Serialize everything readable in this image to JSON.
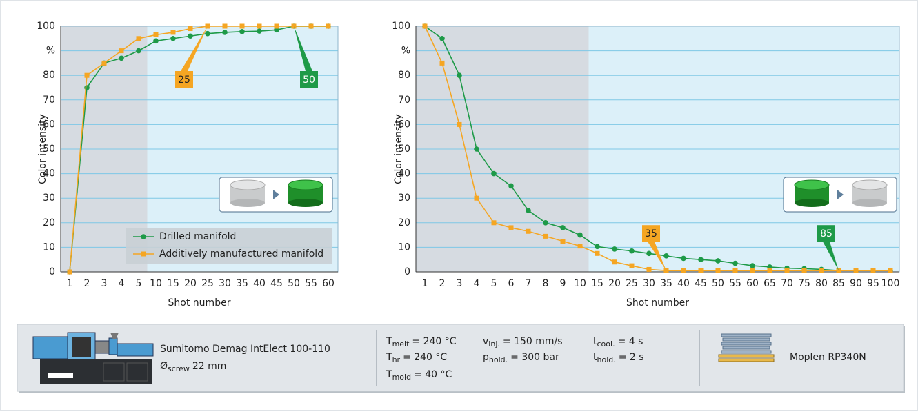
{
  "chart_data": [
    {
      "type": "line",
      "y_label": "Color intensity",
      "x_label": "Shot number",
      "categories": [
        "1",
        "2",
        "3",
        "4",
        "5",
        "10",
        "15",
        "20",
        "25",
        "30",
        "35",
        "40",
        "45",
        "50",
        "55",
        "60"
      ],
      "series": [
        {
          "name": "Drilled manifold",
          "color": "#1e9a48",
          "marker": "circle",
          "values": [
            0,
            75,
            85,
            87,
            90,
            94,
            95,
            96,
            97,
            97.5,
            97.8,
            98,
            98.5,
            100,
            100,
            100
          ]
        },
        {
          "name": "Additively manufactured manifold",
          "color": "#f5a623",
          "marker": "square",
          "values": [
            0,
            80,
            85,
            90,
            95,
            96.5,
            97.5,
            99,
            100,
            100,
            100,
            100,
            100,
            100,
            100,
            100
          ]
        }
      ],
      "ylim": [
        0,
        100
      ],
      "yticks": [
        0,
        10,
        20,
        30,
        40,
        50,
        60,
        70,
        80,
        {
          "value": 90,
          "label": "%"
        },
        100
      ],
      "grid": true,
      "legend": "lower right",
      "annotations": [
        {
          "label": "25",
          "at": "25",
          "series": 1
        },
        {
          "label": "50",
          "at": "50",
          "series": 0
        }
      ]
    },
    {
      "type": "line",
      "y_label": "Color intensity",
      "x_label": "Shot number",
      "categories": [
        "1",
        "2",
        "3",
        "4",
        "5",
        "6",
        "7",
        "8",
        "9",
        "10",
        "15",
        "20",
        "25",
        "30",
        "35",
        "40",
        "45",
        "50",
        "55",
        "60",
        "65",
        "70",
        "75",
        "80",
        "85",
        "90",
        "95",
        "100"
      ],
      "series": [
        {
          "color": "#1e9a48",
          "marker": "circle",
          "values": [
            100,
            95,
            80,
            50,
            40,
            35,
            25,
            20,
            18,
            15,
            10.3,
            9.3,
            8.5,
            7.5,
            6.5,
            5.5,
            5,
            4.5,
            3.5,
            2.5,
            2,
            1.5,
            1.3,
            1,
            0.5,
            0.5,
            0.5,
            0.5
          ]
        },
        {
          "color": "#f5a623",
          "marker": "square",
          "values": [
            100,
            85,
            60,
            30,
            20,
            18,
            16.5,
            14.5,
            12.5,
            10.5,
            7.5,
            4,
            2.5,
            1,
            0.5,
            0.5,
            0.5,
            0.5,
            0.5,
            0.5,
            0.5,
            0.5,
            0.5,
            0.5,
            0.5,
            0.5,
            0.5,
            0.5
          ]
        }
      ],
      "ylim": [
        0,
        100
      ],
      "yticks": [
        0,
        10,
        20,
        30,
        40,
        50,
        60,
        70,
        80,
        {
          "value": 90,
          "label": "%"
        },
        100
      ],
      "grid": true,
      "annotations": [
        {
          "label": "35",
          "at": "35",
          "series": 1
        },
        {
          "label": "85",
          "at": "85",
          "series": 0
        }
      ]
    }
  ],
  "info": {
    "machine": "Sumitomo Demag IntElect 100-110",
    "screw": {
      "symbol": "Ø",
      "sub": "screw",
      "text": "22 mm"
    },
    "parameters": [
      {
        "symbol": "T",
        "sub": "melt",
        "text": "= 240 °C"
      },
      {
        "symbol": "T",
        "sub": "hr",
        "text": "= 240 °C"
      },
      {
        "symbol": "T",
        "sub": "mold",
        "text": "= 40 °C"
      },
      {
        "symbol": "v",
        "sub": "inj.",
        "text": "= 150 mm/s"
      },
      {
        "symbol": "p",
        "sub": "hold.",
        "text": "= 300 bar"
      },
      {
        "symbol": "t",
        "sub": "cool.",
        "text": "= 4 s"
      },
      {
        "symbol": "t",
        "sub": "hold.",
        "text": "= 2 s"
      }
    ],
    "material": "Moplen RP340N"
  }
}
